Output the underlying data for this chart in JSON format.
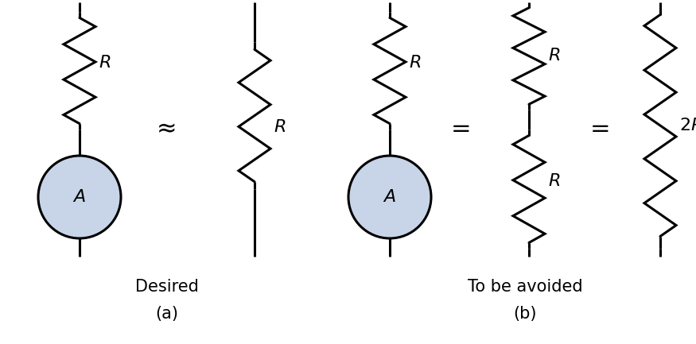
{
  "bg_color": "#ffffff",
  "line_color": "#000000",
  "ammeter_fill": "#c8d4e8",
  "ammeter_stroke": "#000000",
  "label_color": "#000000",
  "text_color": "#000000",
  "figsize": [
    8.75,
    4.33
  ],
  "dpi": 100,
  "approx_symbol": "≈",
  "equal_symbol": "=",
  "labels": {
    "desired": "Desired",
    "a": "(a)",
    "to_be_avoided": "To be avoided",
    "b": "(b)"
  }
}
